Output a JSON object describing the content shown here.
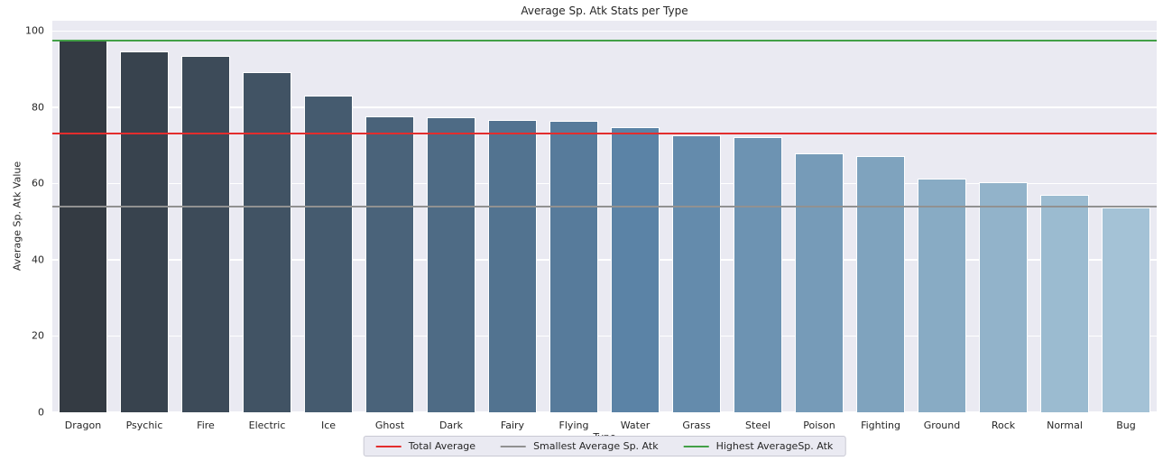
{
  "chart_data": {
    "type": "bar",
    "title": "Average Sp. Atk Stats per Type",
    "xlabel": "Type",
    "ylabel": "Average Sp. Atk Value",
    "categories": [
      "Dragon",
      "Psychic",
      "Fire",
      "Electric",
      "Ice",
      "Ghost",
      "Dark",
      "Fairy",
      "Flying",
      "Water",
      "Grass",
      "Steel",
      "Poison",
      "Fighting",
      "Ground",
      "Rock",
      "Normal",
      "Bug"
    ],
    "values": [
      97.5,
      94.7,
      93.4,
      89.1,
      83.1,
      77.6,
      77.3,
      76.6,
      76.4,
      74.7,
      72.6,
      72.1,
      67.9,
      67.1,
      61.2,
      60.4,
      57.1,
      53.8
    ],
    "bar_colors": [
      "#343b43",
      "#38434e",
      "#3d4b59",
      "#415364",
      "#455b6f",
      "#4a637a",
      "#4e6b85",
      "#527390",
      "#577b9b",
      "#5b83a6",
      "#648bac",
      "#6d93b2",
      "#769bb8",
      "#7fa3be",
      "#88abc4",
      "#92b3ca",
      "#9bbbd0",
      "#a4c2d6"
    ],
    "yticks": [
      0,
      20,
      40,
      60,
      80,
      100
    ],
    "ylim": [
      0,
      102.7
    ],
    "grid": true,
    "plot_background": "#eaeaf2",
    "gridline_color": "#ffffff",
    "legend_position": "lower center",
    "reference_lines": [
      {
        "label": "Total Average",
        "value": 73.2,
        "color": "#e32d2d"
      },
      {
        "label": "Smallest Average Sp. Atk",
        "value": 53.9,
        "color": "#919191"
      },
      {
        "label": "Highest AverageSp. Atk",
        "value": 97.6,
        "color": "#43a047"
      }
    ]
  }
}
